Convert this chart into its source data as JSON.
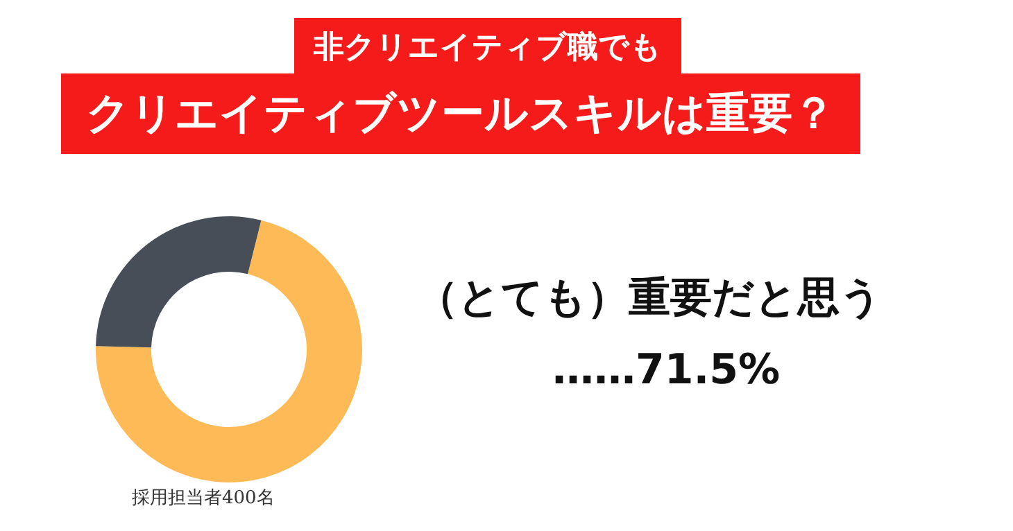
{
  "chart_data": {
    "type": "donut",
    "subtitle": "非クリエイティブ職でも",
    "title": "クリエイティブツールスキルは重要？",
    "categories": [
      "（とても）重要だと思う",
      null
    ],
    "values": [
      71.5,
      28.5
    ],
    "colors": [
      "#fdba57",
      "#474e57"
    ],
    "value_labels": [
      "……71.5%",
      null
    ],
    "annotations": [
      "採用担当者400名"
    ],
    "legend": false
  }
}
